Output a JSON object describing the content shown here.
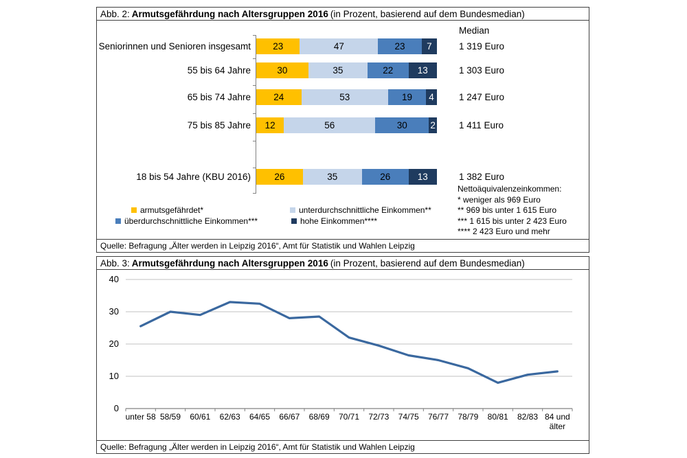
{
  "fig2": {
    "title_prefix": "Abb. 2:",
    "title_main": "Armutsgefährdung nach Altersgruppen 2016",
    "title_suffix": "(in Prozent, basierend auf dem Bundesmedian)",
    "median_header": "Median",
    "footnote_header": "Nettoäquivalenzeinkommen:",
    "footnotes": [
      "* weniger als 969 Euro",
      "** 969 bis unter 1 615 Euro",
      "*** 1 615 bis unter 2 423 Euro",
      "**** 2 423 Euro und mehr"
    ],
    "source": "Quelle: Befragung „Älter werden in Leipzig 2016“, Amt für Statistik und Wahlen Leipzig"
  },
  "fig3": {
    "title_prefix": "Abb. 3:",
    "title_main": "Armutsgefährdung nach Altersgruppen 2016",
    "title_suffix": "(in Prozent, basierend auf dem Bundesmedian)",
    "source": "Quelle: Befragung „Älter werden in Leipzig 2016“, Amt für Statistik und Wahlen Leipzig"
  },
  "chart_data": [
    {
      "type": "bar",
      "stacked": true,
      "orientation": "horizontal",
      "title": "Armutsgefährdung nach Altersgruppen 2016 (in Prozent, basierend auf dem Bundesmedian)",
      "categories": [
        "Seniorinnen und Senioren insgesamt",
        "55 bis 64 Jahre",
        "65 bis 74 Jahre",
        "75 bis 85 Jahre",
        "18 bis 54 Jahre (KBU 2016)"
      ],
      "series": [
        {
          "name": "armutsgefährdet*",
          "color": "#FFC000",
          "values": [
            23,
            30,
            24,
            12,
            26
          ]
        },
        {
          "name": "unterdurchschnittliche Einkommen**",
          "color": "#C5D5EA",
          "values": [
            47,
            35,
            53,
            56,
            35
          ]
        },
        {
          "name": "überdurchschnittliche Einkommen***",
          "color": "#4A7EBB",
          "values": [
            23,
            22,
            19,
            30,
            26
          ]
        },
        {
          "name": "hohe Einkommen****",
          "color": "#1F3B5F",
          "values": [
            7,
            13,
            4,
            2,
            13
          ]
        }
      ],
      "medians": [
        "1 319 Euro",
        "1 303 Euro",
        "1 247 Euro",
        "1 411 Euro",
        "1 382 Euro"
      ],
      "xlim": [
        0,
        100
      ],
      "legend_position": "bottom"
    },
    {
      "type": "line",
      "categories": [
        "unter 58",
        "58/59",
        "60/61",
        "62/63",
        "64/65",
        "66/67",
        "68/69",
        "70/71",
        "72/73",
        "74/75",
        "76/77",
        "78/79",
        "80/81",
        "82/83",
        "84 und älter"
      ],
      "values": [
        25.5,
        30,
        29,
        33,
        32.5,
        28,
        28.5,
        22,
        19.5,
        16.5,
        15,
        12.5,
        8,
        10.5,
        11.5
      ],
      "ylim": [
        0,
        40
      ],
      "yticks": [
        0,
        10,
        20,
        30,
        40
      ],
      "line_color": "#3A689F",
      "grid_color": "#c0c0c0",
      "axis_color": "#808080",
      "grid": true
    }
  ]
}
